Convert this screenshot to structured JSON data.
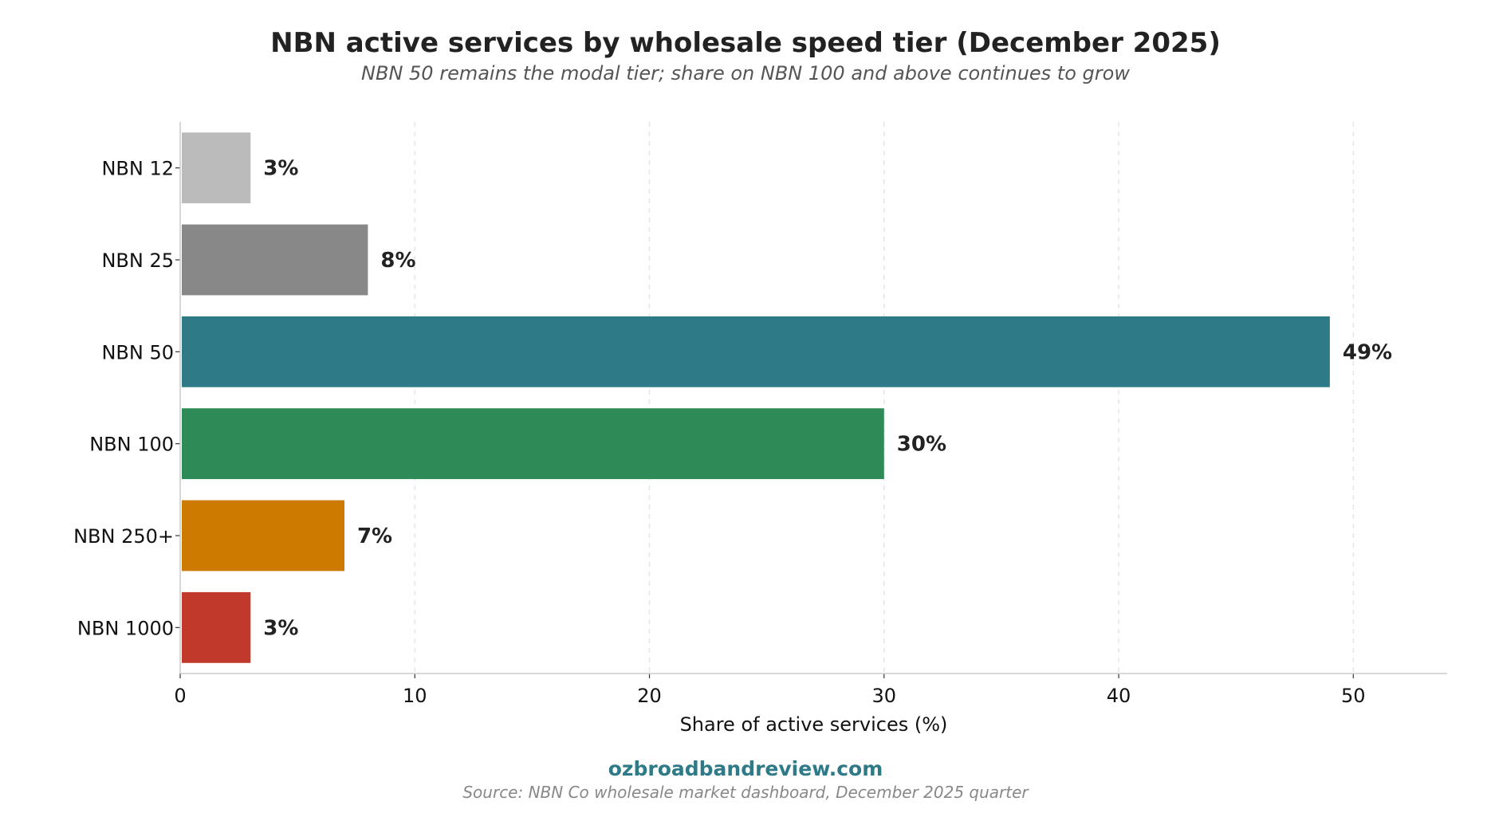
{
  "chart_data": {
    "type": "bar",
    "orientation": "horizontal",
    "title": "NBN active services by wholesale speed tier (December 2025)",
    "subtitle": "NBN 50 remains the modal tier; share on NBN 100 and above continues to grow",
    "xlabel": "Share of active services (%)",
    "ylabel": "",
    "categories": [
      "NBN 12",
      "NBN 25",
      "NBN 50",
      "NBN 100",
      "NBN 250+",
      "NBN 1000"
    ],
    "values": [
      3,
      8,
      49,
      30,
      7,
      3
    ],
    "data_labels": [
      "3%",
      "8%",
      "49%",
      "30%",
      "7%",
      "3%"
    ],
    "colors": [
      "#bbbbbb",
      "#888888",
      "#2e7b87",
      "#2e8b57",
      "#cc7a00",
      "#c0392b"
    ],
    "xlim": [
      0,
      54
    ],
    "xticks": [
      0,
      10,
      20,
      30,
      40,
      50
    ],
    "grid": "vertical dashed",
    "legend": "none"
  },
  "footer": {
    "brand": "ozbroadbandreview.com",
    "brand_color": "#2e7b87",
    "source": "Source: NBN Co wholesale market dashboard, December 2025 quarter"
  }
}
